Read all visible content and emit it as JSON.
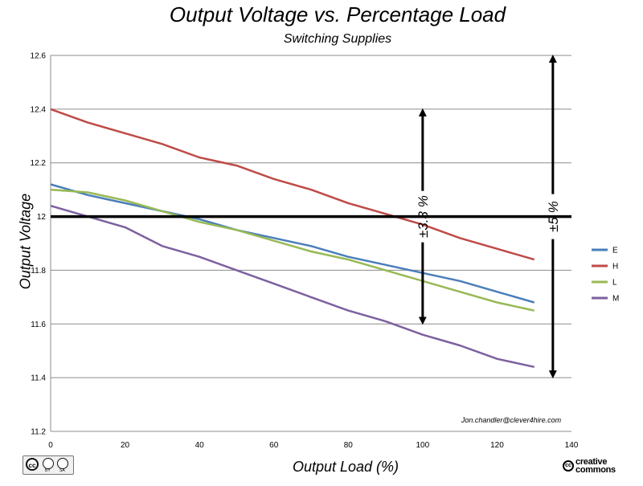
{
  "chart_data": {
    "type": "line",
    "title": "Output Voltage vs. Percentage Load",
    "subtitle": "Switching Supplies",
    "xlabel": "Output Load (%)",
    "ylabel": "Output Voltage",
    "xlim": [
      0,
      140
    ],
    "ylim": [
      11.2,
      12.6
    ],
    "x_ticks": [
      "0",
      "20",
      "40",
      "60",
      "80",
      "100",
      "120",
      "140"
    ],
    "y_ticks": [
      "11.2",
      "11.4",
      "11.6",
      "11.8",
      "12",
      "12.2",
      "12.4",
      "12.6"
    ],
    "grid": true,
    "legend_position": "right",
    "x": [
      0,
      10,
      20,
      30,
      40,
      50,
      60,
      70,
      80,
      90,
      100,
      110,
      120,
      130
    ],
    "series": [
      {
        "name": "E",
        "color": "#4a7ebb",
        "values": [
          12.12,
          12.08,
          12.05,
          12.02,
          11.99,
          11.95,
          11.92,
          11.89,
          11.85,
          11.82,
          11.79,
          11.76,
          11.72,
          11.68
        ]
      },
      {
        "name": "H",
        "color": "#be4b48",
        "values": [
          12.4,
          12.35,
          12.31,
          12.27,
          12.22,
          12.19,
          12.14,
          12.1,
          12.05,
          12.01,
          11.97,
          11.92,
          11.88,
          11.84
        ]
      },
      {
        "name": "L",
        "color": "#98b954",
        "values": [
          12.1,
          12.09,
          12.06,
          12.02,
          11.98,
          11.95,
          11.91,
          11.87,
          11.84,
          11.8,
          11.76,
          11.72,
          11.68,
          11.65
        ]
      },
      {
        "name": "M",
        "color": "#7d60a0",
        "values": [
          12.04,
          12.0,
          11.96,
          11.89,
          11.85,
          11.8,
          11.75,
          11.7,
          11.65,
          11.61,
          11.56,
          11.52,
          11.47,
          11.44
        ]
      }
    ],
    "reference_line": {
      "y": 12,
      "x_range": [
        0,
        140
      ]
    },
    "annotations": [
      {
        "label": "±3.3 %",
        "x": 100,
        "y_from": 11.6,
        "y_to": 12.4
      },
      {
        "label": "±5 %",
        "x": 135,
        "y_from": 11.4,
        "y_to": 12.6
      }
    ],
    "credit": "Jon.chandler@clever4hire.com"
  },
  "footer": {
    "license_badge_text": "cc",
    "license_by": "BY",
    "license_sa": "SA",
    "cc_logo_mark": "cc",
    "cc_logo_line1": "creative",
    "cc_logo_line2": "commons"
  }
}
